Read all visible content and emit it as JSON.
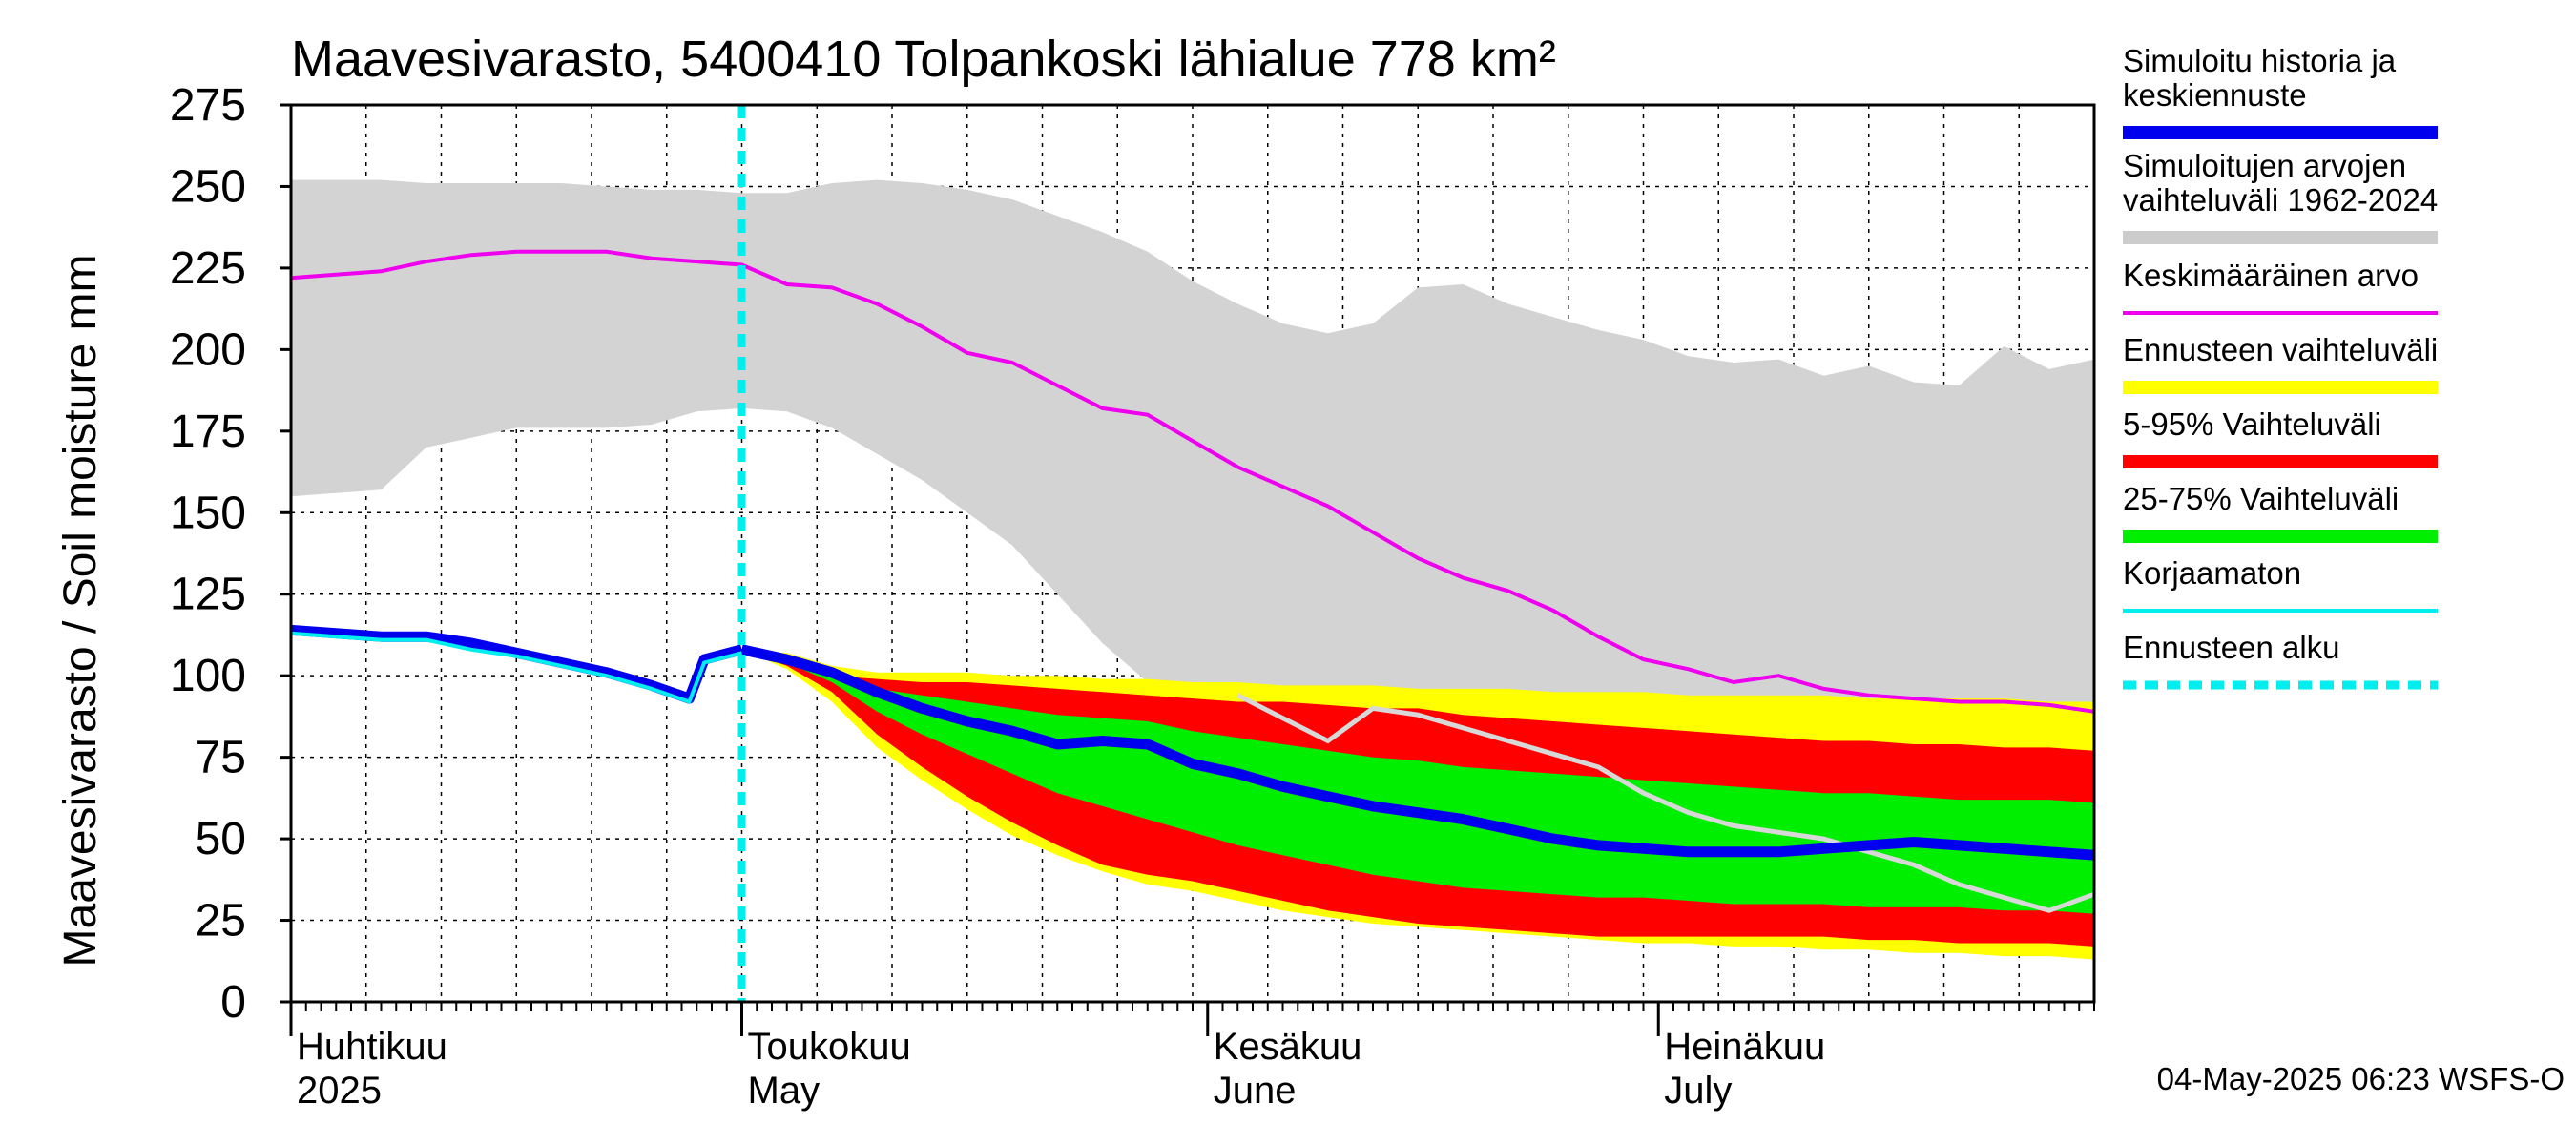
{
  "chart_data": {
    "type": "line",
    "title": "Maavesivarasto, 5400410 Tolpankoski lähialue 778 km²",
    "ylabel": "Maavesivarasto / Soil moisture   mm",
    "ylim": [
      0,
      275
    ],
    "yticks": [
      0,
      25,
      50,
      75,
      100,
      125,
      150,
      175,
      200,
      225,
      250,
      275
    ],
    "xlim_days": [
      0,
      120
    ],
    "month_labels": [
      {
        "day": 0,
        "line1": "Huhtikuu",
        "line2": "2025"
      },
      {
        "day": 30,
        "line1": "Toukokuu",
        "line2": "May"
      },
      {
        "day": 61,
        "line1": "Kesäkuu",
        "line2": "June"
      },
      {
        "day": 91,
        "line1": "Heinäkuu",
        "line2": "July"
      }
    ],
    "forecast_start_day": 30,
    "footer": "04-May-2025 06:23 WSFS-O",
    "legend": [
      {
        "label": "Simuloitu historia ja keskiennuste",
        "color": "#0000ee",
        "style": "thick"
      },
      {
        "label": "Simuloitujen arvojen vaihteluväli 1962-2024",
        "color": "#cccccc",
        "style": "thick"
      },
      {
        "label": "Keskimääräinen arvo",
        "color": "#ee00ee",
        "style": "thin"
      },
      {
        "label": "Ennusteen vaihteluväli",
        "color": "#ffff00",
        "style": "thick"
      },
      {
        "label": "5-95% Vaihteluväli",
        "color": "#ff0000",
        "style": "thick"
      },
      {
        "label": "25-75% Vaihteluväli",
        "color": "#00ee00",
        "style": "thick"
      },
      {
        "label": "Korjaamaton",
        "color": "#00eeee",
        "style": "thin"
      },
      {
        "label": "Ennusteen alku",
        "color": "#00eeee",
        "style": "dashed"
      }
    ],
    "x": [
      0,
      3,
      6,
      9,
      12,
      15,
      18,
      21,
      24,
      27,
      30,
      33,
      36,
      39,
      42,
      45,
      48,
      51,
      54,
      57,
      60,
      63,
      66,
      69,
      72,
      75,
      78,
      81,
      84,
      87,
      90,
      93,
      96,
      99,
      102,
      105,
      108,
      111,
      114,
      117,
      120
    ],
    "sim_range_upper": [
      252,
      252,
      252,
      251,
      251,
      251,
      251,
      250,
      249,
      249,
      248,
      248,
      251,
      252,
      251,
      249,
      246,
      241,
      236,
      230,
      221,
      214,
      208,
      205,
      208,
      219,
      220,
      214,
      210,
      206,
      203,
      198,
      196,
      197,
      192,
      195,
      190,
      189,
      201,
      194,
      197
    ],
    "sim_range_lower": [
      155,
      156,
      157,
      170,
      173,
      176,
      176,
      176,
      177,
      181,
      182,
      181,
      176,
      168,
      160,
      150,
      140,
      125,
      110,
      98,
      88,
      84,
      82,
      80,
      80,
      79,
      80,
      81,
      82,
      82,
      83,
      84,
      85,
      86,
      87,
      88,
      89,
      90,
      90,
      91,
      90
    ],
    "mean": [
      222,
      223,
      224,
      227,
      229,
      230,
      230,
      230,
      228,
      227,
      226,
      220,
      219,
      214,
      207,
      199,
      196,
      189,
      182,
      180,
      172,
      164,
      158,
      152,
      144,
      136,
      130,
      126,
      120,
      112,
      105,
      102,
      98,
      100,
      96,
      94,
      93,
      92,
      92,
      91,
      89
    ],
    "history": {
      "x": [
        0,
        3,
        6,
        9,
        12,
        15,
        18,
        21,
        24,
        26.5,
        27.5,
        30
      ],
      "values": [
        114,
        113,
        112,
        112,
        110,
        107,
        104,
        101,
        97,
        93,
        105,
        108
      ]
    },
    "uncorrected": {
      "x": [
        0,
        3,
        6,
        9,
        12,
        15,
        18,
        21,
        24,
        26.5,
        27.5,
        30
      ],
      "values": [
        113,
        112,
        111,
        111,
        108,
        106,
        103,
        100,
        96,
        92,
        104,
        107
      ]
    },
    "forecast_x": [
      30,
      33,
      36,
      39,
      42,
      45,
      48,
      51,
      54,
      57,
      60,
      63,
      66,
      69,
      72,
      75,
      78,
      81,
      84,
      87,
      90,
      93,
      96,
      99,
      102,
      105,
      108,
      111,
      114,
      117,
      120
    ],
    "forecast_mean": [
      108,
      105,
      101,
      95,
      90,
      86,
      83,
      79,
      80,
      79,
      73,
      70,
      66,
      63,
      60,
      58,
      56,
      53,
      50,
      48,
      47,
      46,
      46,
      46,
      47,
      48,
      49,
      48,
      47,
      46,
      45
    ],
    "p5": [
      108,
      103,
      95,
      82,
      72,
      63,
      55,
      48,
      42,
      39,
      37,
      34,
      31,
      28,
      26,
      24,
      23,
      22,
      21,
      20,
      20,
      20,
      20,
      20,
      20,
      19,
      19,
      18,
      18,
      18,
      17
    ],
    "p95": [
      108,
      106,
      100,
      99,
      98,
      98,
      97,
      96,
      95,
      94,
      93,
      92,
      92,
      91,
      90,
      90,
      88,
      87,
      86,
      85,
      84,
      83,
      82,
      81,
      80,
      80,
      79,
      79,
      78,
      78,
      77
    ],
    "p25": [
      108,
      104,
      98,
      89,
      82,
      76,
      70,
      64,
      60,
      56,
      52,
      48,
      45,
      42,
      39,
      37,
      35,
      34,
      33,
      32,
      32,
      31,
      30,
      30,
      30,
      29,
      29,
      29,
      28,
      28,
      27
    ],
    "p75": [
      108,
      105,
      100,
      96,
      94,
      92,
      90,
      88,
      87,
      86,
      83,
      81,
      79,
      77,
      75,
      74,
      72,
      71,
      70,
      69,
      68,
      67,
      66,
      65,
      64,
      64,
      63,
      62,
      62,
      62,
      61
    ],
    "range_min": [
      108,
      102,
      92,
      78,
      68,
      59,
      51,
      45,
      40,
      36,
      34,
      31,
      28,
      26,
      24,
      23,
      22,
      21,
      20,
      19,
      18,
      18,
      17,
      17,
      16,
      16,
      15,
      15,
      14,
      14,
      13
    ],
    "range_max": [
      108,
      107,
      103,
      101,
      101,
      101,
      100,
      100,
      99,
      99,
      98,
      98,
      97,
      97,
      97,
      96,
      96,
      96,
      95,
      95,
      95,
      94,
      94,
      94,
      94,
      93,
      93,
      93,
      93,
      92,
      92
    ],
    "grey_line": {
      "x": [
        63,
        66,
        69,
        72,
        75,
        78,
        81,
        84,
        87,
        90,
        93,
        96,
        99,
        102,
        105,
        108,
        111,
        114,
        117,
        120
      ],
      "values": [
        94,
        87,
        80,
        90,
        88,
        84,
        80,
        76,
        72,
        64,
        58,
        54,
        52,
        50,
        46,
        42,
        36,
        32,
        28,
        33
      ]
    }
  }
}
